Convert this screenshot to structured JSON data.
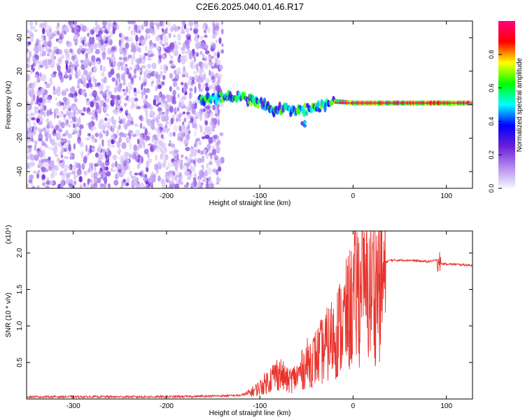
{
  "title": "C2E6.2025.040.01.46.R17",
  "colorbar": {
    "label": "Normalized spectral amplitude",
    "ticks": [
      "0.0",
      "0.2",
      "0.4",
      "0.6",
      "0.8"
    ],
    "tick_values": [
      0.0,
      0.2,
      0.4,
      0.6,
      0.8
    ],
    "range": [
      0,
      1
    ],
    "stops": [
      "#f7f7ff",
      "#b48cf0",
      "#6a1fd8",
      "#0000ff",
      "#00ffff",
      "#00ff00",
      "#ffff00",
      "#ff0000",
      "#ff0080"
    ]
  },
  "chart_data": [
    {
      "type": "heatmap",
      "xlabel": "Height of straight line (km)",
      "ylabel": "Frequency (Hz)",
      "xlim": [
        -350,
        128
      ],
      "ylim": [
        -50,
        50
      ],
      "xticks": [
        -300,
        -200,
        -100,
        0,
        100
      ],
      "yticks": [
        -40,
        -20,
        0,
        20,
        40
      ],
      "description_trace": {
        "x": [
          -165,
          -150,
          -130,
          -110,
          -95,
          -85,
          -75,
          -65,
          -55,
          -45,
          -35,
          -20,
          0,
          20,
          40,
          60,
          80,
          100,
          128
        ],
        "y": [
          3,
          4,
          5,
          3,
          0,
          -4,
          -2,
          -4,
          -3,
          -3,
          -1,
          2,
          1,
          1,
          1,
          1,
          1,
          1,
          1
        ]
      },
      "noise_region_xlim": [
        -350,
        -140
      ]
    },
    {
      "type": "line",
      "xlabel": "Height of straight line (km)",
      "ylabel": "SNR (10 * v/v)",
      "multiplier": "(x10⁴)",
      "xlim": [
        -350,
        128
      ],
      "ylim": [
        0,
        2.3
      ],
      "xticks": [
        -300,
        -200,
        -100,
        0,
        100
      ],
      "yticks": [
        0.5,
        1.0,
        1.5,
        2.0
      ],
      "ytick_labels": [
        "0.5",
        "1.0",
        "1.5",
        "2.0"
      ],
      "color": "#e8322b",
      "series": [
        {
          "x": [
            -350,
            -200,
            -150,
            -120,
            -110,
            -100,
            -90,
            -80,
            -70,
            -60,
            -50,
            -40,
            -30,
            -20,
            -10,
            0,
            5,
            10,
            20,
            30,
            40,
            60,
            80,
            90,
            95,
            100,
            128
          ],
          "values": [
            0.03,
            0.03,
            0.04,
            0.05,
            0.1,
            0.18,
            0.3,
            0.42,
            0.28,
            0.35,
            0.55,
            0.65,
            0.8,
            1.0,
            1.2,
            1.5,
            1.75,
            1.55,
            1.75,
            1.85,
            1.9,
            1.9,
            1.88,
            1.9,
            1.85,
            1.85,
            1.83
          ]
        }
      ]
    }
  ]
}
